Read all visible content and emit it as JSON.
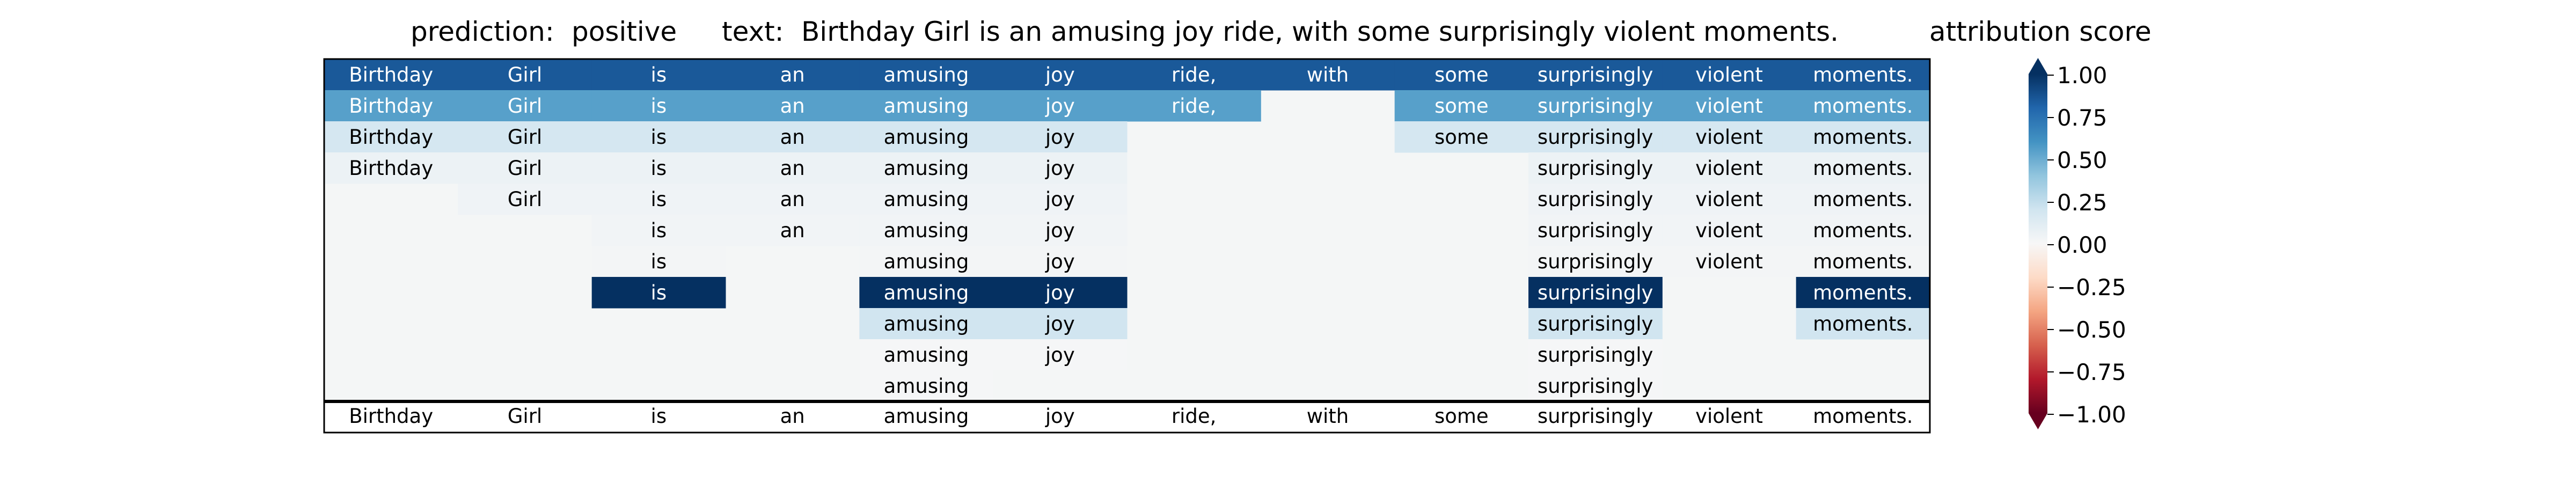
{
  "chart_data": {
    "type": "heatmap",
    "header": {
      "prediction_label": "prediction:",
      "prediction_value": "positive",
      "text_label": "text:",
      "text_value": "Birthday Girl is an amusing joy ride, with some surprisingly violent moments."
    },
    "words": [
      "Birthday",
      "Girl",
      "is",
      "an",
      "amusing",
      "joy",
      "ride,",
      "with",
      "some",
      "surprisingly",
      "violent",
      "moments."
    ],
    "rows": [
      [
        0.85,
        0.85,
        0.85,
        0.85,
        0.85,
        0.85,
        0.85,
        0.85,
        0.85,
        0.85,
        0.85,
        0.85
      ],
      [
        0.55,
        0.55,
        0.55,
        0.55,
        0.55,
        0.55,
        0.55,
        null,
        0.55,
        0.55,
        0.55,
        0.55
      ],
      [
        0.18,
        0.18,
        0.18,
        0.18,
        0.18,
        0.18,
        null,
        null,
        0.18,
        0.18,
        0.18,
        0.18
      ],
      [
        0.06,
        0.06,
        0.06,
        0.06,
        0.06,
        0.06,
        null,
        null,
        null,
        0.06,
        0.06,
        0.06
      ],
      [
        null,
        0.04,
        0.04,
        0.04,
        0.04,
        0.04,
        null,
        null,
        null,
        0.04,
        0.04,
        0.04
      ],
      [
        null,
        null,
        0.03,
        0.03,
        0.03,
        0.03,
        null,
        null,
        null,
        0.03,
        0.03,
        0.03
      ],
      [
        null,
        null,
        0.02,
        null,
        0.02,
        0.02,
        null,
        null,
        null,
        0.02,
        0.02,
        0.02
      ],
      [
        null,
        null,
        1.0,
        null,
        1.0,
        1.0,
        null,
        null,
        null,
        1.0,
        null,
        1.0
      ],
      [
        null,
        null,
        null,
        null,
        0.2,
        0.2,
        null,
        null,
        null,
        0.2,
        null,
        0.2
      ],
      [
        null,
        null,
        null,
        null,
        0.01,
        0.01,
        null,
        null,
        null,
        0.01,
        null,
        null
      ],
      [
        null,
        null,
        null,
        null,
        0.01,
        null,
        null,
        null,
        null,
        0.01,
        null,
        null
      ]
    ],
    "colorbar": {
      "title": "attribution score",
      "range": [
        -1.0,
        1.0
      ],
      "ticks": [
        1.0,
        0.75,
        0.5,
        0.25,
        0.0,
        -0.25,
        -0.5,
        -0.75,
        -1.0
      ],
      "tick_labels": [
        "1.00",
        "0.75",
        "0.50",
        "0.25",
        "0.00",
        "−0.25",
        "−0.50",
        "−0.75",
        "−1.00"
      ],
      "colormap": [
        "#67001f",
        "#b2182b",
        "#d6604d",
        "#f4a582",
        "#fddbc7",
        "#f7f7f7",
        "#d1e5f0",
        "#92c5de",
        "#4393c3",
        "#2166ac",
        "#053061"
      ]
    },
    "empty_cell_color": "#f4f6f6"
  }
}
